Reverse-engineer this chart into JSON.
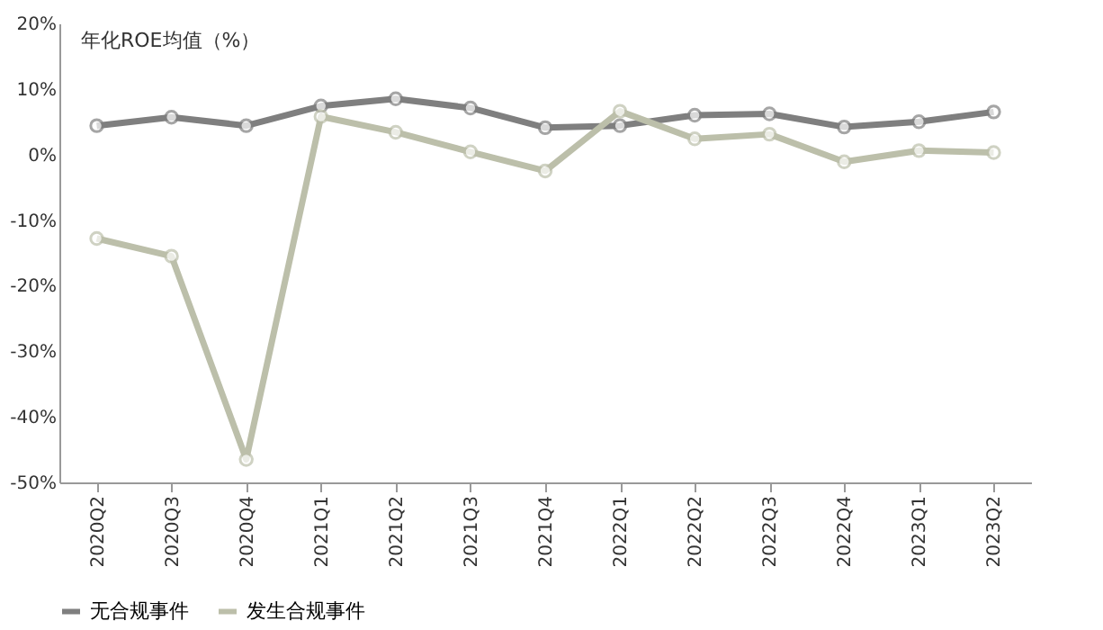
{
  "chart_data": {
    "type": "line",
    "ylabel": "年化ROE均值（%）",
    "categories": [
      "2020Q2",
      "2020Q3",
      "2020Q4",
      "2021Q1",
      "2021Q2",
      "2021Q3",
      "2021Q4",
      "2022Q1",
      "2022Q2",
      "2022Q3",
      "2022Q4",
      "2023Q1",
      "2023Q2"
    ],
    "series": [
      {
        "name": "无合规事件",
        "color": "#7f7f7f",
        "values": [
          4.4,
          5.7,
          4.4,
          7.4,
          8.5,
          7.1,
          4.1,
          4.4,
          6.0,
          6.2,
          4.2,
          5.0,
          6.5
        ]
      },
      {
        "name": "发生合规事件",
        "color": "#bcbfaa",
        "values": [
          -12.8,
          -15.5,
          -46.5,
          5.8,
          3.4,
          0.4,
          -2.5,
          6.6,
          2.4,
          3.1,
          -1.1,
          0.6,
          0.3
        ]
      }
    ],
    "ylim": [
      -50,
      20
    ],
    "yticks": [
      {
        "value": -50,
        "label": "-50%"
      },
      {
        "value": -40,
        "label": "-40%"
      },
      {
        "value": -30,
        "label": "-30%"
      },
      {
        "value": -20,
        "label": "-20%"
      },
      {
        "value": -10,
        "label": "-10%"
      },
      {
        "value": 0,
        "label": "0%"
      },
      {
        "value": 10,
        "label": "10%"
      },
      {
        "value": 20,
        "label": "20%"
      }
    ],
    "marker": "circle",
    "line_style": "solid",
    "legend": "bottom",
    "grid": false
  }
}
